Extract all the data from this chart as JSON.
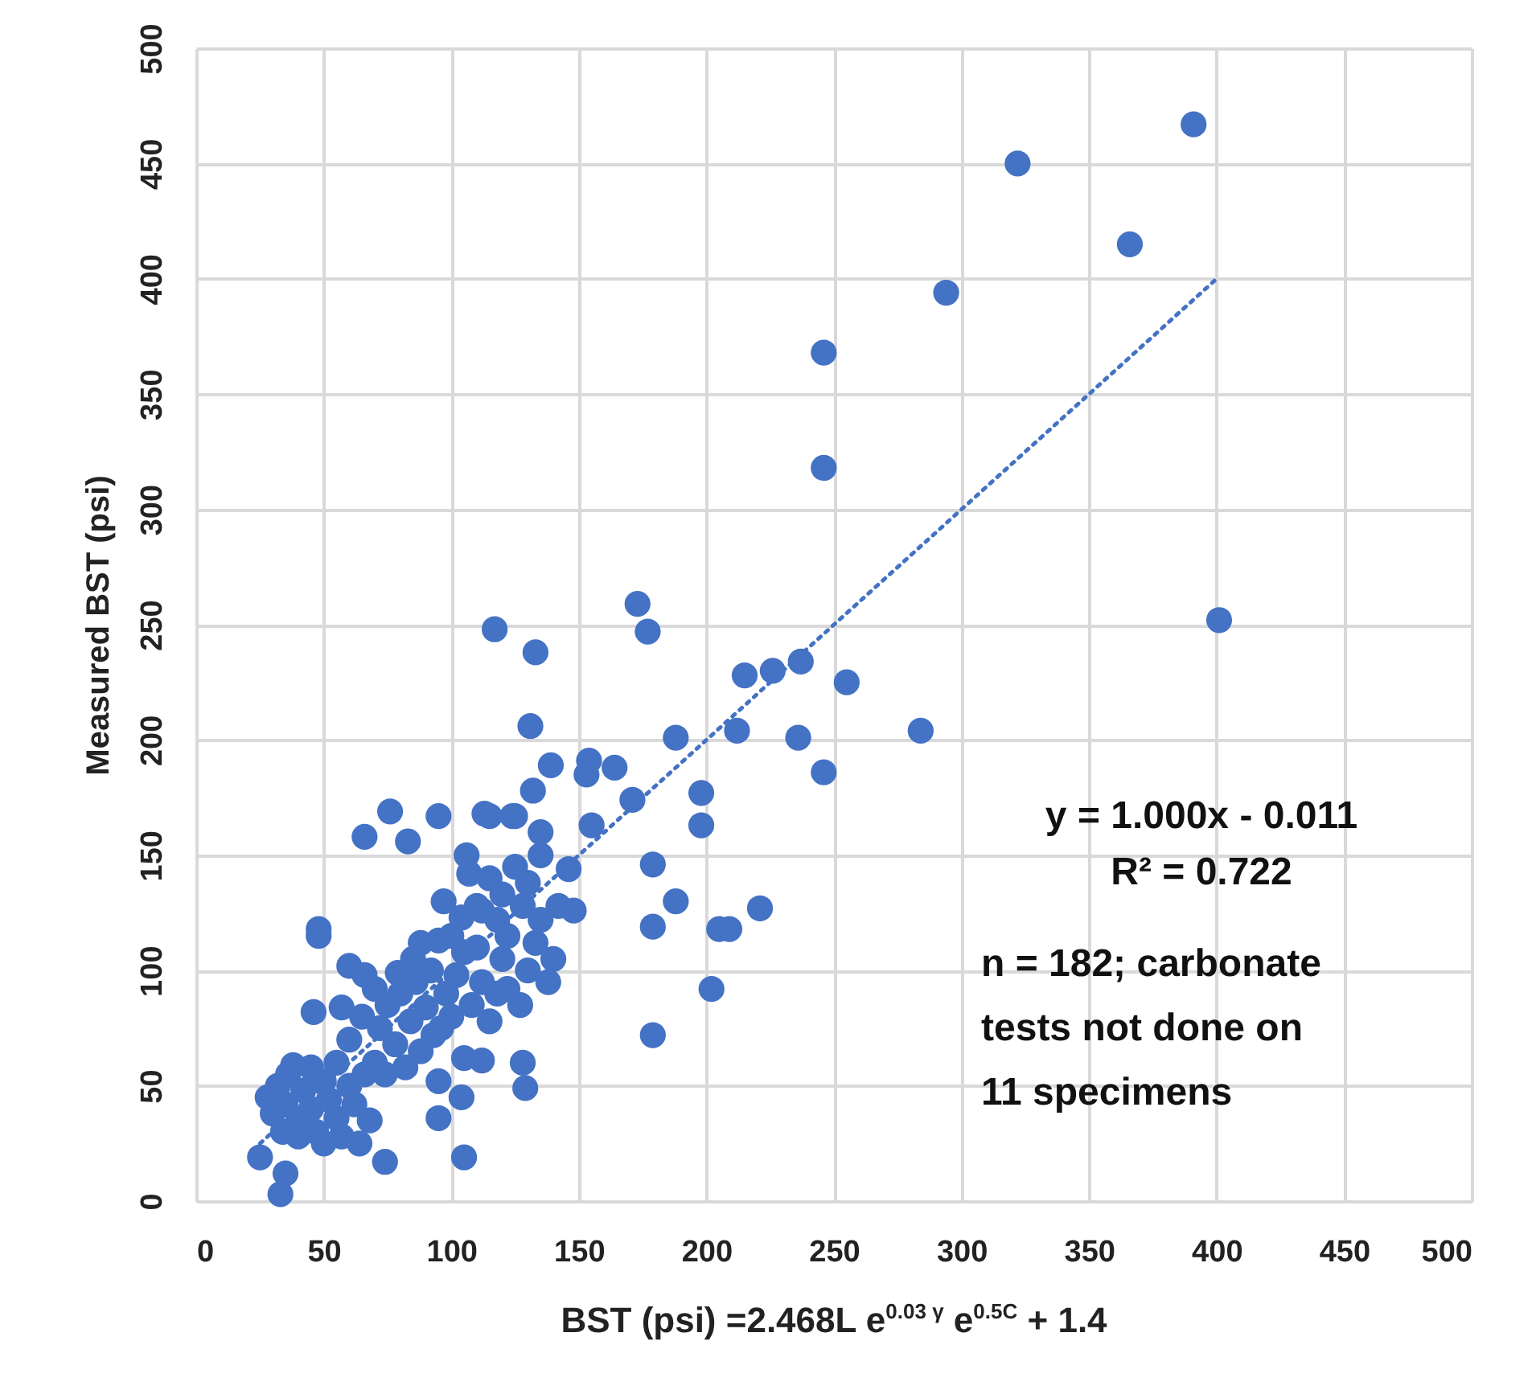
{
  "chart_data": {
    "type": "scatter",
    "xlabel": "BST (psi) =2.468L e$^{0.03 γ}$ e$^{0.5C}$ + 1.4",
    "ylabel": "Measured BST (psi)",
    "xlim": [
      0,
      500
    ],
    "ylim": [
      0,
      500
    ],
    "xticks": [
      0,
      50,
      100,
      150,
      200,
      250,
      300,
      350,
      400,
      450,
      500
    ],
    "yticks": [
      0,
      50,
      100,
      150,
      200,
      250,
      300,
      350,
      400,
      450,
      500
    ],
    "grid": true,
    "annotations": [
      "y = 1.000x - 0.011",
      "R² = 0.722",
      "n = 182; carbonate\ntests not done on\n11 specimens"
    ],
    "series": [
      {
        "marker": "circle",
        "color": "#4472c4",
        "x": [
          391,
          322,
          366,
          294,
          246,
          246,
          401,
          173,
          177,
          215,
          226,
          237,
          212,
          236,
          188,
          117,
          133,
          131,
          139,
          154,
          153,
          164,
          132,
          171,
          198,
          198,
          155,
          179,
          188,
          179,
          205,
          209,
          221,
          202,
          148,
          115,
          125,
          135,
          146,
          246,
          255,
          284,
          179,
          95,
          83,
          113,
          124,
          106,
          48,
          115,
          120,
          125,
          130,
          135,
          128,
          118,
          110,
          122,
          133,
          140,
          138,
          130,
          127,
          118,
          112,
          105,
          100,
          110,
          142,
          135,
          48,
          60,
          66,
          46,
          57,
          79,
          88,
          95,
          104,
          112,
          120,
          112,
          129,
          95,
          104,
          95,
          105,
          74,
          25,
          35,
          33,
          38,
          107,
          97,
          66,
          76,
          28,
          30,
          32,
          35,
          36,
          40,
          42,
          45,
          47,
          50,
          52,
          55,
          57,
          60,
          62,
          64,
          66,
          68,
          45,
          55,
          40,
          50,
          34,
          70,
          72,
          75,
          78,
          80,
          82,
          84,
          86,
          88,
          90,
          92,
          70,
          74,
          85,
          93,
          60,
          65,
          98,
          100,
          102,
          96,
          108,
          115,
          122,
          128,
          105
        ],
        "values": [
          467,
          450,
          415,
          394,
          368,
          318,
          252,
          259,
          247,
          228,
          230,
          234,
          204,
          201,
          201,
          248,
          238,
          206,
          189,
          191,
          185,
          188,
          178,
          174,
          177,
          163,
          163,
          146,
          130,
          119,
          118,
          118,
          127,
          92,
          126,
          167,
          167,
          160,
          144,
          186,
          225,
          204,
          72,
          167,
          156,
          168,
          167,
          150,
          118,
          140,
          133,
          145,
          138,
          150,
          128,
          122,
          128,
          115,
          112,
          105,
          95,
          100,
          85,
          90,
          95,
          108,
          115,
          110,
          128,
          122,
          115,
          102,
          98,
          82,
          84,
          99,
          112,
          113,
          123,
          126,
          105,
          61,
          49,
          52,
          45,
          36,
          19,
          17,
          19,
          12,
          3,
          59,
          142,
          130,
          158,
          169,
          45,
          38,
          50,
          42,
          55,
          35,
          48,
          40,
          30,
          52,
          44,
          36,
          28,
          50,
          42,
          25,
          55,
          35,
          58,
          60,
          28,
          25,
          30,
          60,
          75,
          85,
          68,
          90,
          58,
          78,
          95,
          65,
          84,
          100,
          92,
          55,
          105,
          72,
          70,
          80,
          90,
          80,
          98,
          75,
          85,
          78,
          92,
          60,
          62
        ]
      },
      {
        "type": "line",
        "color": "#4472c4",
        "line_style": "dotted",
        "x": [
          25,
          401
        ],
        "values": [
          25,
          401
        ]
      }
    ]
  }
}
